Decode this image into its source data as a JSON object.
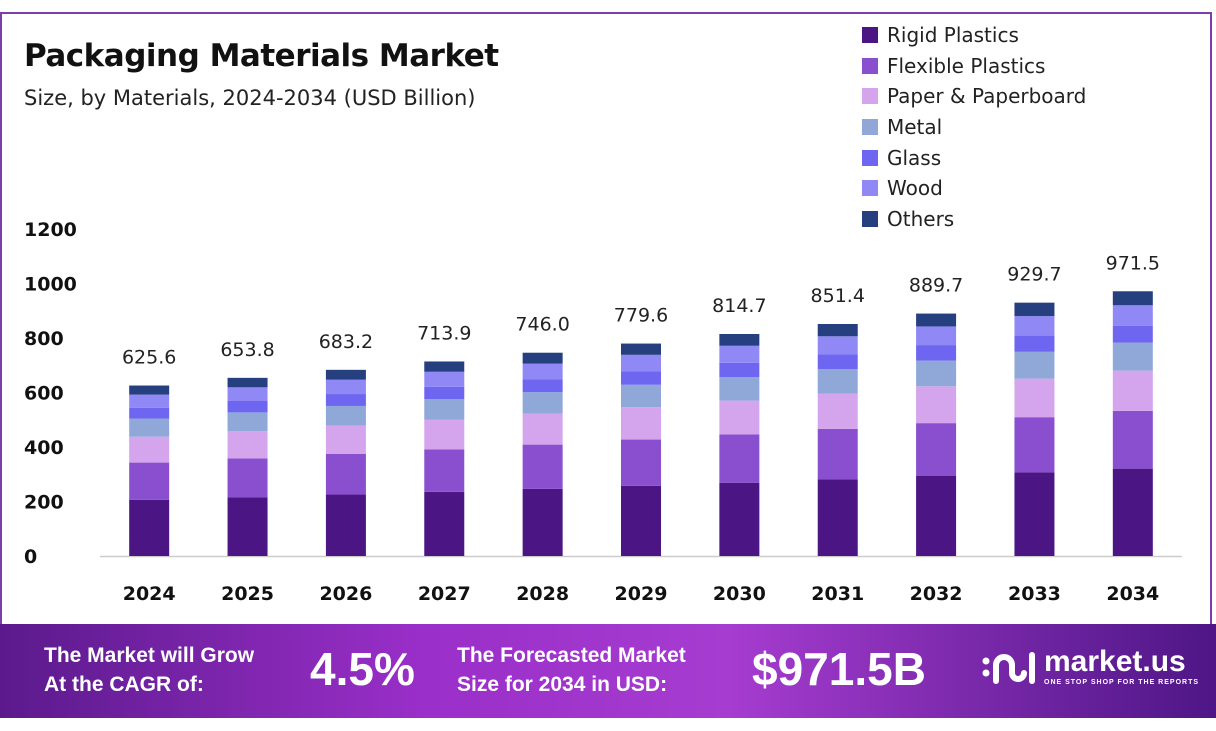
{
  "chart_data": {
    "type": "bar",
    "stacked": true,
    "title": "Packaging Materials Market",
    "subtitle": "Size, by Materials, 2024-2034 (USD Billion)",
    "xlabel": "",
    "ylabel": "",
    "ylim": [
      0,
      1200
    ],
    "yticks": [
      0,
      200,
      400,
      600,
      800,
      1000,
      1200
    ],
    "grid": false,
    "legend_position": "top-right",
    "categories": [
      "2024",
      "2025",
      "2026",
      "2027",
      "2028",
      "2029",
      "2030",
      "2031",
      "2032",
      "2033",
      "2034"
    ],
    "totals": [
      "625.6",
      "653.8",
      "683.2",
      "713.9",
      "746.0",
      "779.6",
      "814.7",
      "851.4",
      "889.7",
      "929.7",
      "971.5"
    ],
    "series": [
      {
        "name": "Rigid Plastics",
        "color": "#4b1584",
        "values": [
          206.4,
          215.8,
          225.5,
          235.6,
          246.2,
          257.3,
          268.9,
          281.0,
          293.6,
          306.8,
          320.6
        ]
      },
      {
        "name": "Flexible Plastics",
        "color": "#8a4fcf",
        "values": [
          136.4,
          142.5,
          148.9,
          155.6,
          162.6,
          170.0,
          177.6,
          185.6,
          194.0,
          202.7,
          211.8
        ]
      },
      {
        "name": "Paper & Paperboard",
        "color": "#d4a5ec",
        "values": [
          95.1,
          99.4,
          103.8,
          108.5,
          113.4,
          118.5,
          123.8,
          129.4,
          135.2,
          141.3,
          147.7
        ]
      },
      {
        "name": "Metal",
        "color": "#8fa8d8",
        "values": [
          66.3,
          69.3,
          72.4,
          75.7,
          79.1,
          82.6,
          86.4,
          90.2,
          94.3,
          98.5,
          103.0
        ]
      },
      {
        "name": "Glass",
        "color": "#6e66f0",
        "values": [
          40.0,
          41.8,
          43.7,
          45.7,
          47.7,
          49.9,
          52.1,
          54.5,
          56.9,
          59.5,
          62.2
        ]
      },
      {
        "name": "Wood",
        "color": "#8f88f5",
        "values": [
          48.2,
          50.3,
          52.6,
          55.0,
          57.4,
          60.0,
          62.7,
          65.6,
          68.5,
          71.6,
          74.8
        ]
      },
      {
        "name": "Others",
        "color": "#263f7e",
        "values": [
          33.2,
          34.7,
          36.3,
          37.8,
          39.6,
          41.3,
          43.2,
          45.1,
          47.2,
          49.3,
          51.4
        ]
      }
    ]
  },
  "banner": {
    "cagr_label_1": "The Market will Grow",
    "cagr_label_2": "At the CAGR of:",
    "cagr_value": "4.5%",
    "forecast_label_1": "The Forecasted Market",
    "forecast_label_2": "Size for 2034 in USD:",
    "forecast_value": "$971.5B",
    "logo_name": "market.us",
    "logo_tagline": "ONE STOP SHOP FOR THE REPORTS"
  }
}
